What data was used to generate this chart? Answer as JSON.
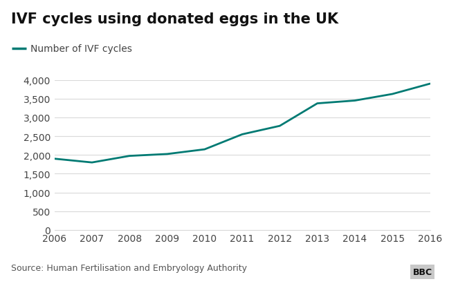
{
  "title": "IVF cycles using donated eggs in the UK",
  "legend_label": "Number of IVF cycles",
  "line_color": "#007a73",
  "years": [
    2006,
    2007,
    2008,
    2009,
    2010,
    2011,
    2012,
    2013,
    2014,
    2015,
    2016
  ],
  "values": [
    1900,
    1800,
    1975,
    2025,
    2150,
    2550,
    2775,
    3375,
    3450,
    3625,
    3900
  ],
  "ylim": [
    0,
    4000
  ],
  "yticks": [
    0,
    500,
    1000,
    1500,
    2000,
    2500,
    3000,
    3500,
    4000
  ],
  "source_text": "Source: Human Fertilisation and Embryology Authority",
  "bbc_text": "BBC",
  "background_color": "#ffffff",
  "grid_color": "#d9d9d9",
  "title_fontsize": 15,
  "legend_fontsize": 10,
  "tick_fontsize": 10,
  "source_fontsize": 9
}
